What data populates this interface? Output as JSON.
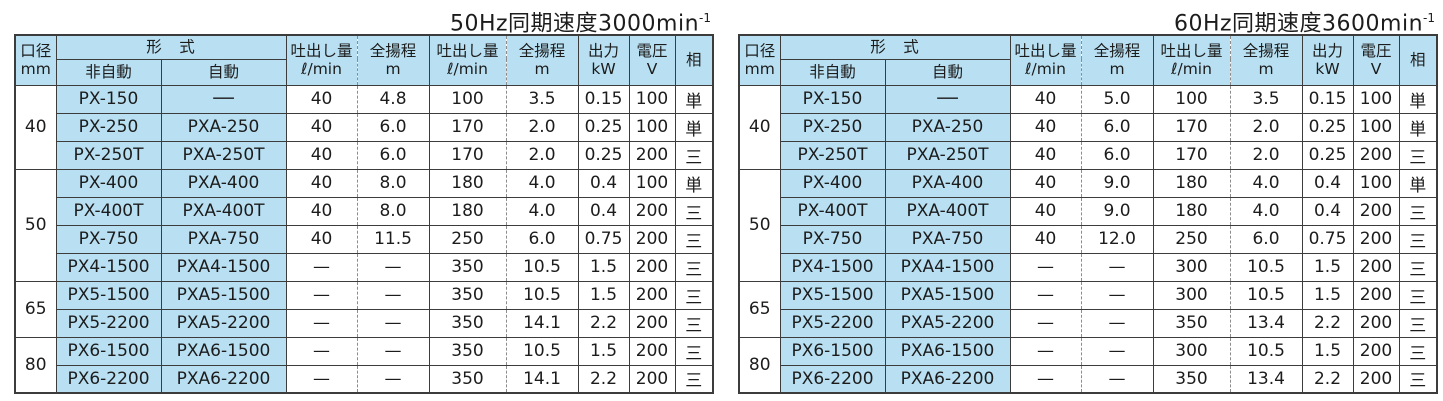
{
  "colors": {
    "header_fill": "#b9e0f2",
    "border": "#3c3c3c",
    "dashed_divider": "#8c8c8c",
    "text": "#1c1c1c",
    "background": "#ffffff"
  },
  "columns": {
    "bore": {
      "l1": "口径",
      "l2": "mm"
    },
    "model_group": "形　式",
    "non_auto": "非自動",
    "auto": "自動",
    "discharge": {
      "l1": "吐出し量",
      "l2": "ℓ/min"
    },
    "head": {
      "l1": "全揚程",
      "l2": "m"
    },
    "output": {
      "l1": "出力",
      "l2": "kW"
    },
    "voltage": {
      "l1": "電圧",
      "l2": "V"
    },
    "phase": "相"
  },
  "tables": [
    {
      "id": "50hz",
      "title_main": "50Hz同期速度3000min",
      "title_sup": "-1",
      "groups": [
        {
          "bore": "40",
          "rows": [
            {
              "non_auto": "PX-150",
              "auto": "──",
              "q1": "40",
              "h1": "4.8",
              "q2": "100",
              "h2": "3.5",
              "kw": "0.15",
              "v": "100",
              "phase": "単"
            },
            {
              "non_auto": "PX-250",
              "auto": "PXA-250",
              "q1": "40",
              "h1": "6.0",
              "q2": "170",
              "h2": "2.0",
              "kw": "0.25",
              "v": "100",
              "phase": "単"
            },
            {
              "non_auto": "PX-250T",
              "auto": "PXA-250T",
              "q1": "40",
              "h1": "6.0",
              "q2": "170",
              "h2": "2.0",
              "kw": "0.25",
              "v": "200",
              "phase": "三"
            }
          ]
        },
        {
          "bore": "50",
          "rows": [
            {
              "non_auto": "PX-400",
              "auto": "PXA-400",
              "q1": "40",
              "h1": "8.0",
              "q2": "180",
              "h2": "4.0",
              "kw": "0.4",
              "v": "100",
              "phase": "単"
            },
            {
              "non_auto": "PX-400T",
              "auto": "PXA-400T",
              "q1": "40",
              "h1": "8.0",
              "q2": "180",
              "h2": "4.0",
              "kw": "0.4",
              "v": "200",
              "phase": "三"
            },
            {
              "non_auto": "PX-750",
              "auto": "PXA-750",
              "q1": "40",
              "h1": "11.5",
              "q2": "250",
              "h2": "6.0",
              "kw": "0.75",
              "v": "200",
              "phase": "三"
            },
            {
              "non_auto": "PX4-1500",
              "auto": "PXA4-1500",
              "q1": "—",
              "h1": "—",
              "q2": "350",
              "h2": "10.5",
              "kw": "1.5",
              "v": "200",
              "phase": "三"
            }
          ]
        },
        {
          "bore": "65",
          "rows": [
            {
              "non_auto": "PX5-1500",
              "auto": "PXA5-1500",
              "q1": "—",
              "h1": "—",
              "q2": "350",
              "h2": "10.5",
              "kw": "1.5",
              "v": "200",
              "phase": "三"
            },
            {
              "non_auto": "PX5-2200",
              "auto": "PXA5-2200",
              "q1": "—",
              "h1": "—",
              "q2": "350",
              "h2": "14.1",
              "kw": "2.2",
              "v": "200",
              "phase": "三"
            }
          ]
        },
        {
          "bore": "80",
          "rows": [
            {
              "non_auto": "PX6-1500",
              "auto": "PXA6-1500",
              "q1": "—",
              "h1": "—",
              "q2": "350",
              "h2": "10.5",
              "kw": "1.5",
              "v": "200",
              "phase": "三"
            },
            {
              "non_auto": "PX6-2200",
              "auto": "PXA6-2200",
              "q1": "—",
              "h1": "—",
              "q2": "350",
              "h2": "14.1",
              "kw": "2.2",
              "v": "200",
              "phase": "三"
            }
          ]
        }
      ]
    },
    {
      "id": "60hz",
      "title_main": "60Hz同期速度3600min",
      "title_sup": "-1",
      "groups": [
        {
          "bore": "40",
          "rows": [
            {
              "non_auto": "PX-150",
              "auto": "──",
              "q1": "40",
              "h1": "5.0",
              "q2": "100",
              "h2": "3.5",
              "kw": "0.15",
              "v": "100",
              "phase": "単"
            },
            {
              "non_auto": "PX-250",
              "auto": "PXA-250",
              "q1": "40",
              "h1": "6.0",
              "q2": "170",
              "h2": "2.0",
              "kw": "0.25",
              "v": "100",
              "phase": "単"
            },
            {
              "non_auto": "PX-250T",
              "auto": "PXA-250T",
              "q1": "40",
              "h1": "6.0",
              "q2": "170",
              "h2": "2.0",
              "kw": "0.25",
              "v": "200",
              "phase": "三"
            }
          ]
        },
        {
          "bore": "50",
          "rows": [
            {
              "non_auto": "PX-400",
              "auto": "PXA-400",
              "q1": "40",
              "h1": "9.0",
              "q2": "180",
              "h2": "4.0",
              "kw": "0.4",
              "v": "100",
              "phase": "単"
            },
            {
              "non_auto": "PX-400T",
              "auto": "PXA-400T",
              "q1": "40",
              "h1": "9.0",
              "q2": "180",
              "h2": "4.0",
              "kw": "0.4",
              "v": "200",
              "phase": "三"
            },
            {
              "non_auto": "PX-750",
              "auto": "PXA-750",
              "q1": "40",
              "h1": "12.0",
              "q2": "250",
              "h2": "6.0",
              "kw": "0.75",
              "v": "200",
              "phase": "三"
            },
            {
              "non_auto": "PX4-1500",
              "auto": "PXA4-1500",
              "q1": "—",
              "h1": "—",
              "q2": "300",
              "h2": "10.5",
              "kw": "1.5",
              "v": "200",
              "phase": "三"
            }
          ]
        },
        {
          "bore": "65",
          "rows": [
            {
              "non_auto": "PX5-1500",
              "auto": "PXA5-1500",
              "q1": "—",
              "h1": "—",
              "q2": "300",
              "h2": "10.5",
              "kw": "1.5",
              "v": "200",
              "phase": "三"
            },
            {
              "non_auto": "PX5-2200",
              "auto": "PXA5-2200",
              "q1": "—",
              "h1": "—",
              "q2": "350",
              "h2": "13.4",
              "kw": "2.2",
              "v": "200",
              "phase": "三"
            }
          ]
        },
        {
          "bore": "80",
          "rows": [
            {
              "non_auto": "PX6-1500",
              "auto": "PXA6-1500",
              "q1": "—",
              "h1": "—",
              "q2": "300",
              "h2": "10.5",
              "kw": "1.5",
              "v": "200",
              "phase": "三"
            },
            {
              "non_auto": "PX6-2200",
              "auto": "PXA6-2200",
              "q1": "—",
              "h1": "—",
              "q2": "350",
              "h2": "13.4",
              "kw": "2.2",
              "v": "200",
              "phase": "三"
            }
          ]
        }
      ]
    }
  ]
}
